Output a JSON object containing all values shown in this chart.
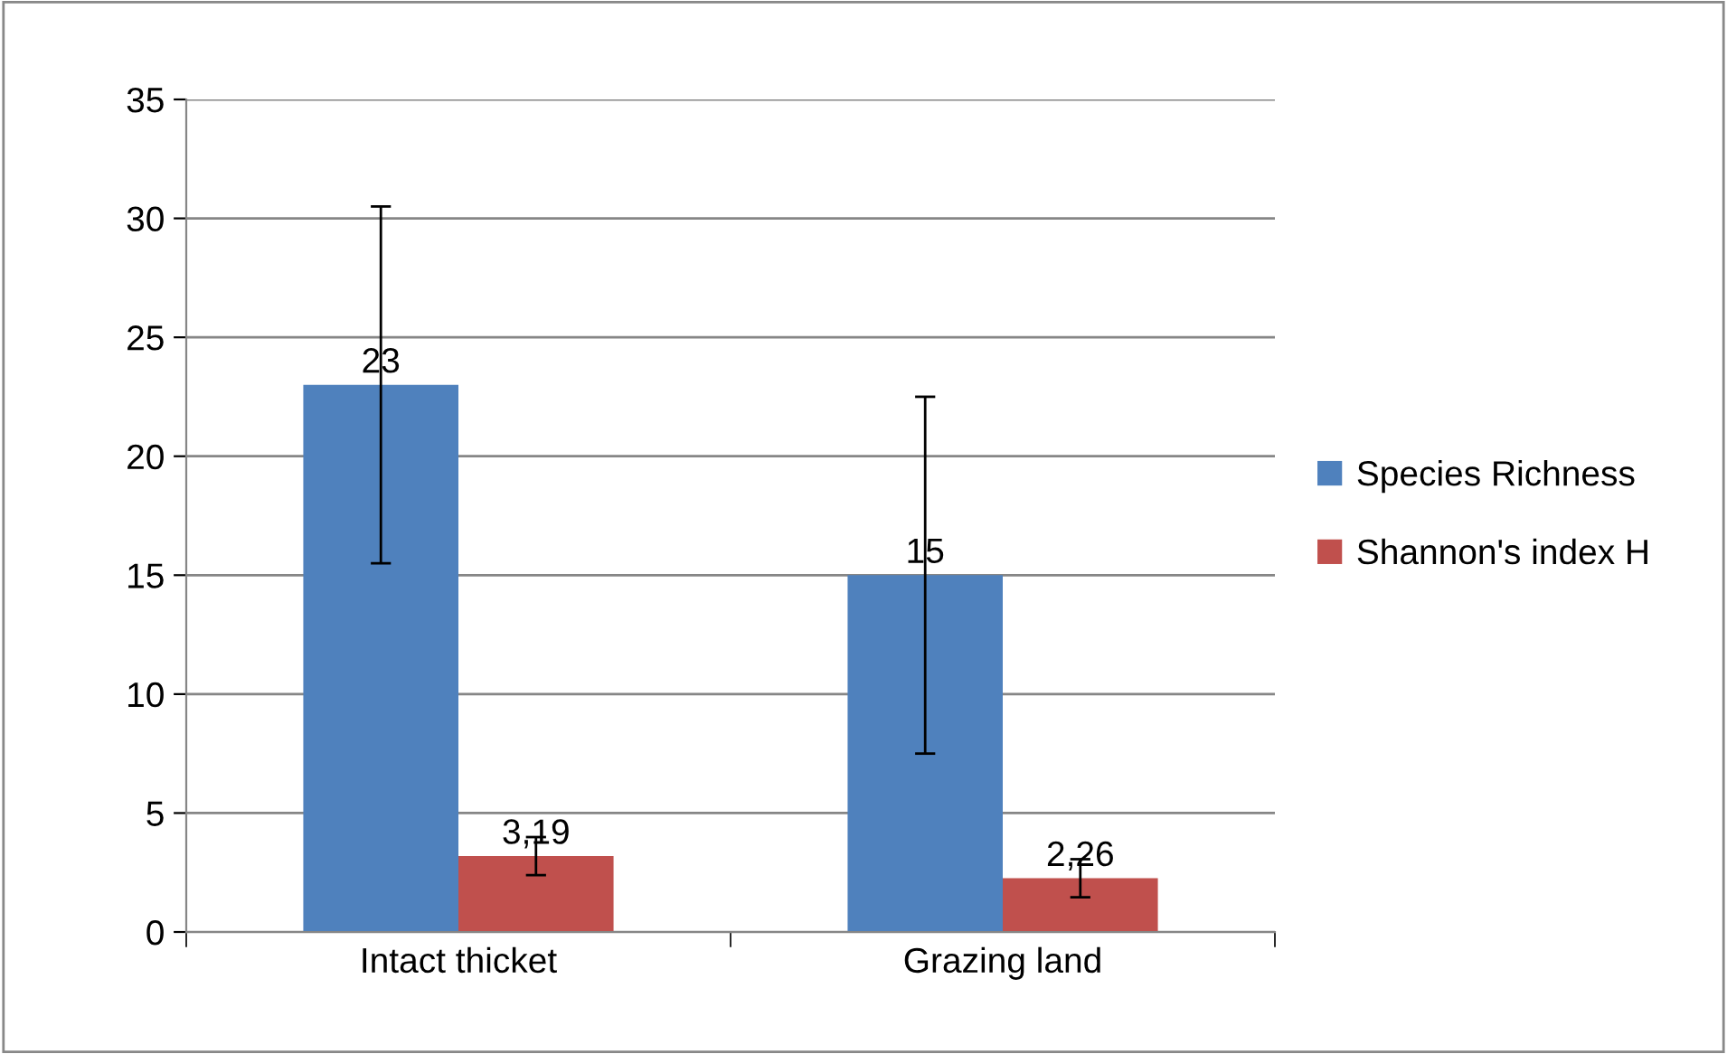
{
  "chart_data": {
    "type": "bar",
    "categories": [
      "Intact thicket",
      "Grazing land"
    ],
    "series": [
      {
        "name": "Species Richness",
        "color": "#4f81bd",
        "values": [
          23,
          15
        ],
        "errors": [
          7.5,
          7.5
        ],
        "value_labels": [
          "23",
          "15"
        ]
      },
      {
        "name": "Shannon's index H",
        "color": "#c0504d",
        "values": [
          3.19,
          2.26
        ],
        "errors": [
          0.8,
          0.8
        ],
        "value_labels": [
          "3,19",
          "2,26"
        ]
      }
    ],
    "ylim": [
      0,
      35
    ],
    "yticks": [
      0,
      5,
      10,
      15,
      20,
      25,
      30,
      35
    ],
    "grid": "y",
    "legend": "right"
  }
}
